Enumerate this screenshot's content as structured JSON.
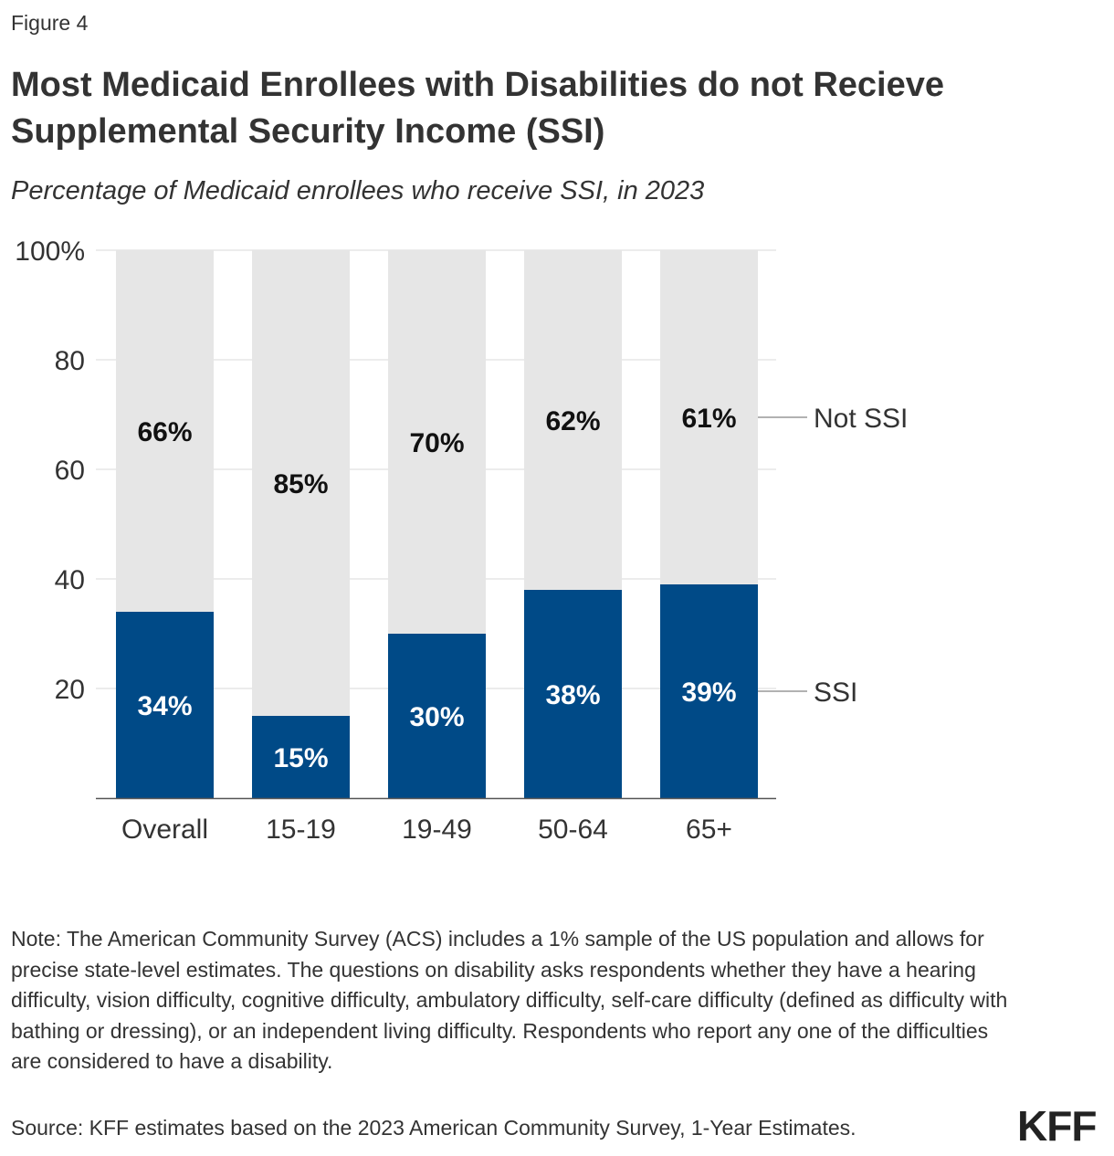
{
  "figure_label": "Figure 4",
  "title": "Most Medicaid Enrollees with Disabilities do not Recieve Supplemental Security Income (SSI)",
  "subtitle": "Percentage of Medicaid enrollees who receive SSI, in 2023",
  "chart_data": {
    "type": "bar",
    "stacked": true,
    "categories": [
      "Overall",
      "15-19",
      "19-49",
      "50-64",
      "65+"
    ],
    "series": [
      {
        "name": "SSI",
        "values": [
          34,
          15,
          30,
          38,
          39
        ],
        "labels": [
          "34%",
          "15%",
          "30%",
          "38%",
          "39%"
        ],
        "color": "#004a87"
      },
      {
        "name": "Not SSI",
        "values": [
          66,
          85,
          70,
          62,
          61
        ],
        "labels": [
          "66%",
          "85%",
          "70%",
          "62%",
          "61%"
        ],
        "color": "#e6e6e6"
      }
    ],
    "yticks": [
      {
        "value": 20,
        "label": "20"
      },
      {
        "value": 40,
        "label": "40"
      },
      {
        "value": 60,
        "label": "60"
      },
      {
        "value": 80,
        "label": "80"
      },
      {
        "value": 100,
        "label": "100%"
      }
    ],
    "ylim": [
      0,
      100
    ],
    "xlabel": "",
    "ylabel": "",
    "legend": "right, inline with last bar"
  },
  "note": "Note: The American Community Survey (ACS) includes a 1% sample of the US population and allows for precise state-level estimates. The questions on disability asks respondents whether they have a hearing difficulty, vision difficulty, cognitive difficulty, ambulatory difficulty, self-care difficulty (defined as difficulty with bathing or dressing), or an independent living difficulty. Respondents who report any one of the difficulties are considered to have a disability.",
  "source": "Source: KFF estimates based on the 2023 American Community Survey, 1-Year Estimates.",
  "logo_text": "KFF"
}
